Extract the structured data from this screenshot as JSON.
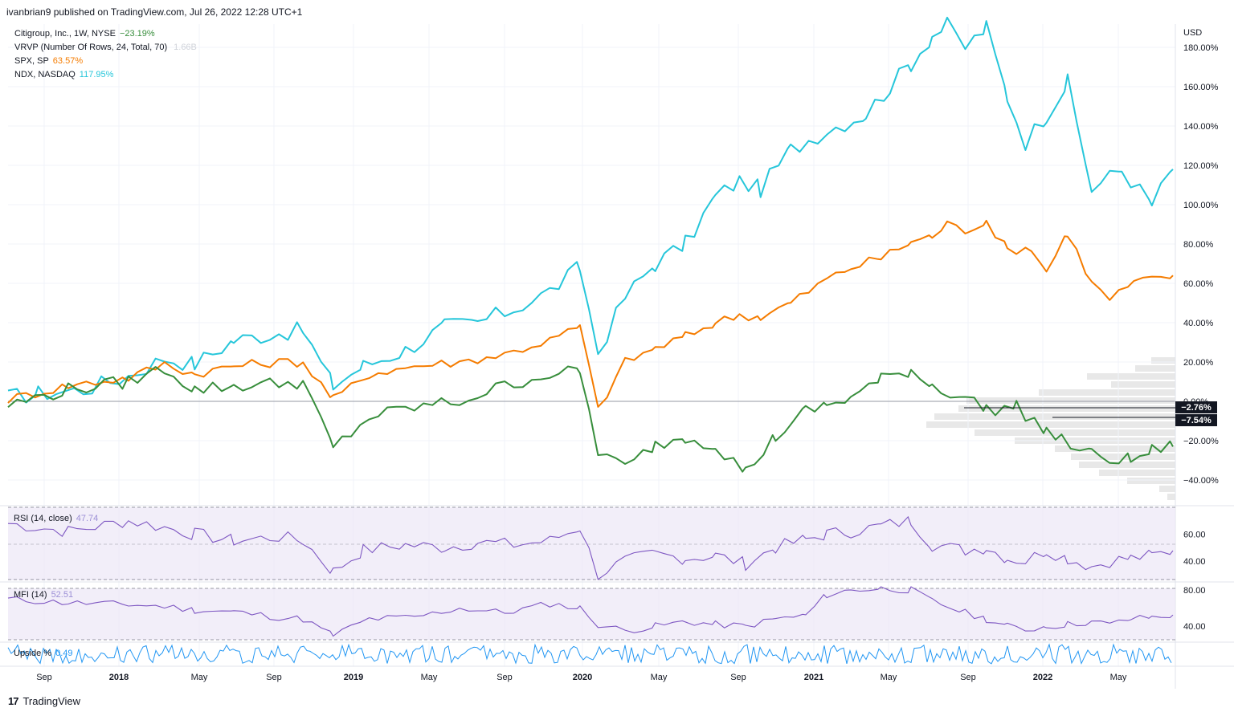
{
  "header": {
    "published": "ivanbrian9 published on TradingView.com, Jul 26, 2022 12:28 UTC+1"
  },
  "legend": {
    "main": {
      "label": "Citigroup, Inc., 1W, NYSE",
      "value": "−23.19%",
      "color": "#388e3c"
    },
    "vrvp": {
      "label": "VRVP (Number Of Rows, 24, Total, 70)",
      "value": "1.66B"
    },
    "spx": {
      "label": "SPX, SP",
      "value": "63.57%",
      "color": "#f57c00"
    },
    "ndx": {
      "label": "NDX, NASDAQ",
      "value": "117.95%",
      "color": "#26c6da"
    }
  },
  "price_axis": {
    "unit": "USD"
  },
  "markers": {
    "m1": {
      "label": "−2.76%",
      "value": -2.76
    },
    "m2": {
      "label": "−7.54%",
      "value": -7.54
    }
  },
  "rsi": {
    "label": "RSI (14, close)",
    "value": "47.74"
  },
  "mfi": {
    "label": "MFI (14)",
    "value": "52.51"
  },
  "upside": {
    "label": "Upside %",
    "value": "0.49"
  },
  "footer": {
    "logo_mark": "17",
    "logo_text": "TradingView"
  },
  "colors": {
    "citi": "#388e3c",
    "spx": "#f57c00",
    "ndx": "#26c6da",
    "osc": "#7e57c2",
    "osc_fill": "#ede7f6",
    "upside": "#2196f3"
  },
  "chart_data": {
    "type": "line",
    "x_ticks": [
      "Sep",
      "2018",
      "May",
      "Sep",
      "2019",
      "May",
      "Sep",
      "2020",
      "May",
      "Sep",
      "2021",
      "May",
      "Sep",
      "2022",
      "May"
    ],
    "y_ticks": [
      "180.00%",
      "160.00%",
      "140.00%",
      "120.00%",
      "100.00%",
      "80.00%",
      "60.00%",
      "40.00%",
      "20.00%",
      "0.00%",
      "−20.00%",
      "−40.00%"
    ],
    "rsi_ticks": [
      "60.00",
      "40.00"
    ],
    "mfi_ticks": [
      "80.00",
      "40.00"
    ],
    "series": [
      {
        "name": "NDX, NASDAQ",
        "values": [
          [
            0,
            2
          ],
          [
            10,
            4
          ],
          [
            25,
            6
          ],
          [
            40,
            13
          ],
          [
            52,
            22
          ],
          [
            62,
            19
          ],
          [
            75,
            31
          ],
          [
            90,
            35
          ],
          [
            98,
            36
          ],
          [
            108,
            8
          ],
          [
            118,
            18
          ],
          [
            132,
            26
          ],
          [
            145,
            38
          ],
          [
            156,
            40
          ],
          [
            168,
            47
          ],
          [
            180,
            56
          ],
          [
            190,
            68
          ],
          [
            196,
            25
          ],
          [
            205,
            53
          ],
          [
            215,
            70
          ],
          [
            225,
            80
          ],
          [
            235,
            104
          ],
          [
            243,
            112
          ],
          [
            250,
            108
          ],
          [
            260,
            128
          ],
          [
            272,
            138
          ],
          [
            285,
            146
          ],
          [
            293,
            160
          ],
          [
            300,
            172
          ],
          [
            307,
            186
          ],
          [
            312,
            191
          ],
          [
            318,
            180
          ],
          [
            325,
            190
          ],
          [
            332,
            155
          ],
          [
            338,
            132
          ],
          [
            345,
            146
          ],
          [
            352,
            162
          ],
          [
            360,
            108
          ],
          [
            370,
            118
          ],
          [
            380,
            100
          ],
          [
            387,
            118
          ]
        ]
      },
      {
        "name": "SPX, SP",
        "values": [
          [
            0,
            1
          ],
          [
            20,
            8
          ],
          [
            40,
            12
          ],
          [
            52,
            19
          ],
          [
            62,
            14
          ],
          [
            75,
            18
          ],
          [
            90,
            20
          ],
          [
            98,
            20
          ],
          [
            108,
            1
          ],
          [
            120,
            14
          ],
          [
            135,
            18
          ],
          [
            150,
            20
          ],
          [
            165,
            24
          ],
          [
            180,
            31
          ],
          [
            190,
            38
          ],
          [
            196,
            -4
          ],
          [
            205,
            20
          ],
          [
            215,
            27
          ],
          [
            225,
            33
          ],
          [
            235,
            40
          ],
          [
            243,
            44
          ],
          [
            250,
            43
          ],
          [
            260,
            50
          ],
          [
            272,
            62
          ],
          [
            280,
            68
          ],
          [
            290,
            73
          ],
          [
            300,
            81
          ],
          [
            307,
            84
          ],
          [
            312,
            90
          ],
          [
            318,
            87
          ],
          [
            325,
            92
          ],
          [
            332,
            77
          ],
          [
            340,
            78
          ],
          [
            345,
            66
          ],
          [
            352,
            86
          ],
          [
            360,
            60
          ],
          [
            366,
            52
          ],
          [
            374,
            60
          ],
          [
            380,
            62
          ],
          [
            387,
            64
          ]
        ]
      },
      {
        "name": "Citigroup, Inc., 1W, NYSE",
        "values": [
          [
            0,
            -2
          ],
          [
            20,
            6
          ],
          [
            40,
            10
          ],
          [
            52,
            17
          ],
          [
            62,
            6
          ],
          [
            75,
            8
          ],
          [
            90,
            9
          ],
          [
            98,
            10
          ],
          [
            108,
            -24
          ],
          [
            120,
            -8
          ],
          [
            135,
            -3
          ],
          [
            150,
            0
          ],
          [
            165,
            8
          ],
          [
            180,
            14
          ],
          [
            190,
            15
          ],
          [
            196,
            -25
          ],
          [
            205,
            -34
          ],
          [
            215,
            -22
          ],
          [
            225,
            -18
          ],
          [
            235,
            -22
          ],
          [
            245,
            -36
          ],
          [
            255,
            -18
          ],
          [
            265,
            -5
          ],
          [
            272,
            -2
          ],
          [
            280,
            2
          ],
          [
            290,
            11
          ],
          [
            300,
            16
          ],
          [
            307,
            8
          ],
          [
            318,
            2
          ],
          [
            325,
            -4
          ],
          [
            335,
            -3
          ],
          [
            345,
            -15
          ],
          [
            350,
            -20
          ],
          [
            360,
            -27
          ],
          [
            366,
            -29
          ],
          [
            373,
            -30
          ],
          [
            380,
            -25
          ],
          [
            387,
            -23
          ]
        ]
      }
    ],
    "rsi_values": [
      [
        0,
        68
      ],
      [
        20,
        62
      ],
      [
        40,
        70
      ],
      [
        52,
        65
      ],
      [
        62,
        60
      ],
      [
        75,
        55
      ],
      [
        90,
        58
      ],
      [
        98,
        55
      ],
      [
        108,
        32
      ],
      [
        118,
        48
      ],
      [
        132,
        52
      ],
      [
        145,
        50
      ],
      [
        156,
        54
      ],
      [
        168,
        52
      ],
      [
        180,
        55
      ],
      [
        190,
        65
      ],
      [
        196,
        30
      ],
      [
        205,
        40
      ],
      [
        215,
        45
      ],
      [
        225,
        42
      ],
      [
        235,
        44
      ],
      [
        245,
        38
      ],
      [
        255,
        50
      ],
      [
        265,
        56
      ],
      [
        272,
        60
      ],
      [
        280,
        62
      ],
      [
        290,
        66
      ],
      [
        300,
        70
      ],
      [
        307,
        52
      ],
      [
        318,
        48
      ],
      [
        325,
        50
      ],
      [
        332,
        42
      ],
      [
        338,
        40
      ],
      [
        345,
        48
      ],
      [
        352,
        42
      ],
      [
        360,
        36
      ],
      [
        366,
        40
      ],
      [
        373,
        42
      ],
      [
        380,
        44
      ],
      [
        387,
        47.74
      ]
    ],
    "mfi_values": [
      [
        0,
        70
      ],
      [
        20,
        66
      ],
      [
        40,
        64
      ],
      [
        52,
        62
      ],
      [
        62,
        58
      ],
      [
        75,
        56
      ],
      [
        90,
        50
      ],
      [
        98,
        48
      ],
      [
        108,
        30
      ],
      [
        120,
        48
      ],
      [
        135,
        50
      ],
      [
        150,
        60
      ],
      [
        165,
        55
      ],
      [
        180,
        65
      ],
      [
        190,
        60
      ],
      [
        196,
        42
      ],
      [
        205,
        35
      ],
      [
        215,
        40
      ],
      [
        225,
        45
      ],
      [
        235,
        42
      ],
      [
        245,
        40
      ],
      [
        255,
        48
      ],
      [
        265,
        52
      ],
      [
        272,
        75
      ],
      [
        280,
        80
      ],
      [
        290,
        82
      ],
      [
        300,
        80
      ],
      [
        307,
        68
      ],
      [
        318,
        55
      ],
      [
        325,
        48
      ],
      [
        332,
        40
      ],
      [
        338,
        36
      ],
      [
        345,
        40
      ],
      [
        352,
        42
      ],
      [
        360,
        45
      ],
      [
        366,
        42
      ],
      [
        373,
        48
      ],
      [
        380,
        50
      ],
      [
        387,
        52.51
      ]
    ],
    "x_range": [
      0,
      387
    ],
    "ylim": [
      -50,
      192
    ],
    "rsi_range": [
      25,
      80
    ],
    "mfi_range": [
      25,
      82
    ],
    "grid": true
  }
}
